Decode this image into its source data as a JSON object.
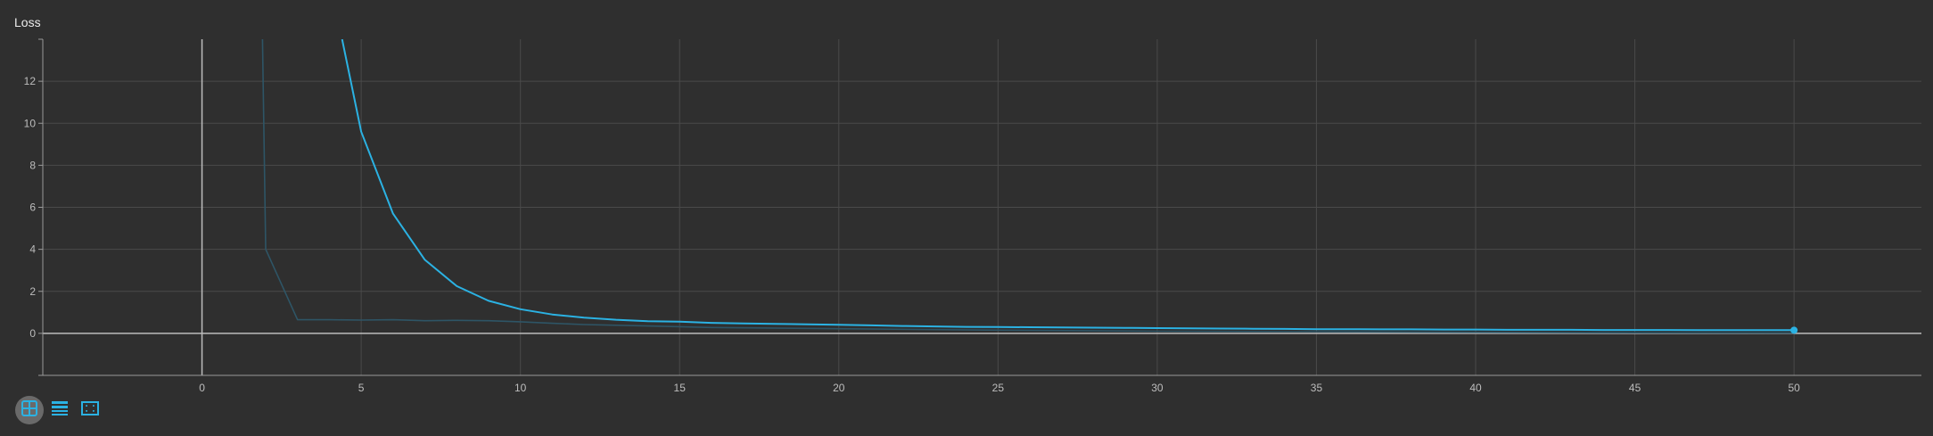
{
  "title": "Loss",
  "colors": {
    "background": "#2f2f2f",
    "grid": "#4a4a4a",
    "axis": "#bdbdbd",
    "series": "#2bb2e3",
    "series_raw": "#2e5566"
  },
  "toolbar": {
    "buttons": [
      {
        "name": "toggle-y-axis-log-icon",
        "active": true
      },
      {
        "name": "toggle-data-table-icon",
        "active": false
      },
      {
        "name": "fit-domain-icon",
        "active": false
      }
    ]
  },
  "chart_data": {
    "type": "line",
    "title": "Loss",
    "xlabel": "",
    "ylabel": "",
    "xlim": [
      -5,
      54
    ],
    "ylim": [
      -2,
      14
    ],
    "x_ticks": [
      0,
      5,
      10,
      15,
      20,
      25,
      30,
      35,
      40,
      45,
      50
    ],
    "y_ticks": [
      0,
      2,
      4,
      6,
      8,
      10,
      12
    ],
    "grid": true,
    "series": [
      {
        "role": "smoothed",
        "x": [
          4.4,
          5,
          6,
          7,
          8,
          9,
          10,
          11,
          12,
          13,
          14,
          15,
          16,
          17,
          18,
          19,
          20,
          21,
          22,
          23,
          24,
          25,
          26,
          27,
          28,
          29,
          30,
          31,
          32,
          33,
          34,
          35,
          36,
          37,
          38,
          39,
          40,
          41,
          42,
          43,
          44,
          45,
          46,
          47,
          48,
          49,
          50
        ],
        "y": [
          14.0,
          9.6,
          5.7,
          3.5,
          2.25,
          1.55,
          1.15,
          0.9,
          0.75,
          0.65,
          0.58,
          0.56,
          0.5,
          0.47,
          0.45,
          0.43,
          0.41,
          0.38,
          0.35,
          0.33,
          0.31,
          0.3,
          0.29,
          0.28,
          0.27,
          0.26,
          0.25,
          0.24,
          0.23,
          0.22,
          0.21,
          0.2,
          0.2,
          0.19,
          0.19,
          0.18,
          0.18,
          0.17,
          0.17,
          0.17,
          0.16,
          0.16,
          0.16,
          0.15,
          0.15,
          0.15,
          0.15
        ]
      },
      {
        "role": "raw",
        "x": [
          1.9,
          2.0,
          3,
          4,
          5,
          6,
          7,
          8,
          9,
          10,
          11,
          12,
          14,
          16,
          20,
          25,
          30,
          35,
          40,
          45,
          50
        ],
        "y": [
          14.0,
          4.0,
          0.65,
          0.65,
          0.63,
          0.65,
          0.6,
          0.62,
          0.6,
          0.55,
          0.48,
          0.42,
          0.35,
          0.28,
          0.22,
          0.15,
          0.1,
          0.08,
          0.05,
          0.03,
          0.02
        ]
      }
    ]
  }
}
